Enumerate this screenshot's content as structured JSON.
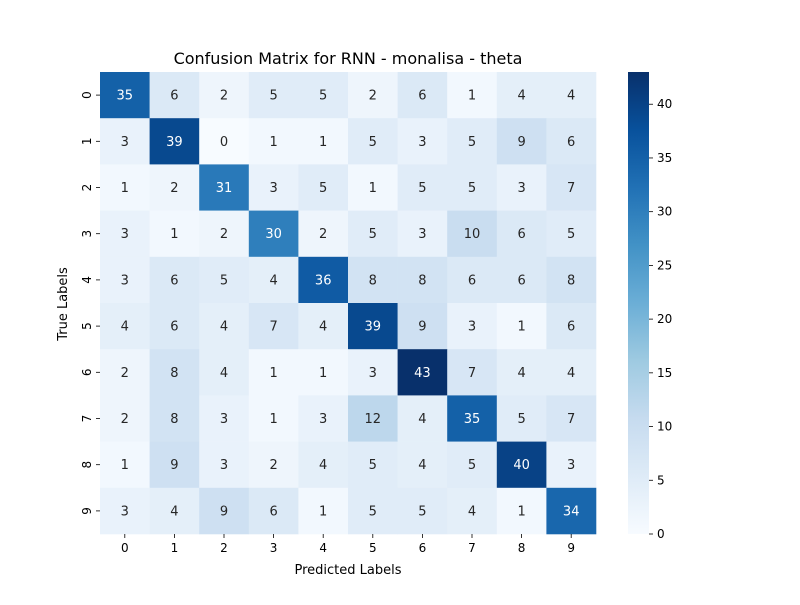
{
  "chart_data": {
    "type": "heatmap",
    "title": "Confusion Matrix for RNN - monalisa - theta",
    "xlabel": "Predicted Labels",
    "ylabel": "True Labels",
    "x_categories": [
      "0",
      "1",
      "2",
      "3",
      "4",
      "5",
      "6",
      "7",
      "8",
      "9"
    ],
    "y_categories": [
      "0",
      "1",
      "2",
      "3",
      "4",
      "5",
      "6",
      "7",
      "8",
      "9"
    ],
    "values": [
      [
        35,
        6,
        2,
        5,
        5,
        2,
        6,
        1,
        4,
        4
      ],
      [
        3,
        39,
        0,
        1,
        1,
        5,
        3,
        5,
        9,
        6
      ],
      [
        1,
        2,
        31,
        3,
        5,
        1,
        5,
        5,
        3,
        7
      ],
      [
        3,
        1,
        2,
        30,
        2,
        5,
        3,
        10,
        6,
        5
      ],
      [
        3,
        6,
        5,
        4,
        36,
        8,
        8,
        6,
        6,
        8
      ],
      [
        4,
        6,
        4,
        7,
        4,
        39,
        9,
        3,
        1,
        6
      ],
      [
        2,
        8,
        4,
        1,
        1,
        3,
        43,
        7,
        4,
        4
      ],
      [
        2,
        8,
        3,
        1,
        3,
        12,
        4,
        35,
        5,
        7
      ],
      [
        1,
        9,
        3,
        2,
        4,
        5,
        4,
        5,
        40,
        3
      ],
      [
        3,
        4,
        9,
        6,
        1,
        5,
        5,
        4,
        1,
        34
      ]
    ],
    "colorscale": "Blues",
    "vmin": 0,
    "vmax": 43,
    "colorbar_ticks": [
      0,
      5,
      10,
      15,
      20,
      25,
      30,
      35,
      40
    ],
    "colorbar_ticks_text": [
      "0",
      "5",
      "10",
      "15",
      "20",
      "25",
      "30",
      "35",
      "40"
    ],
    "grid": false,
    "annotations": "cell values shown"
  }
}
